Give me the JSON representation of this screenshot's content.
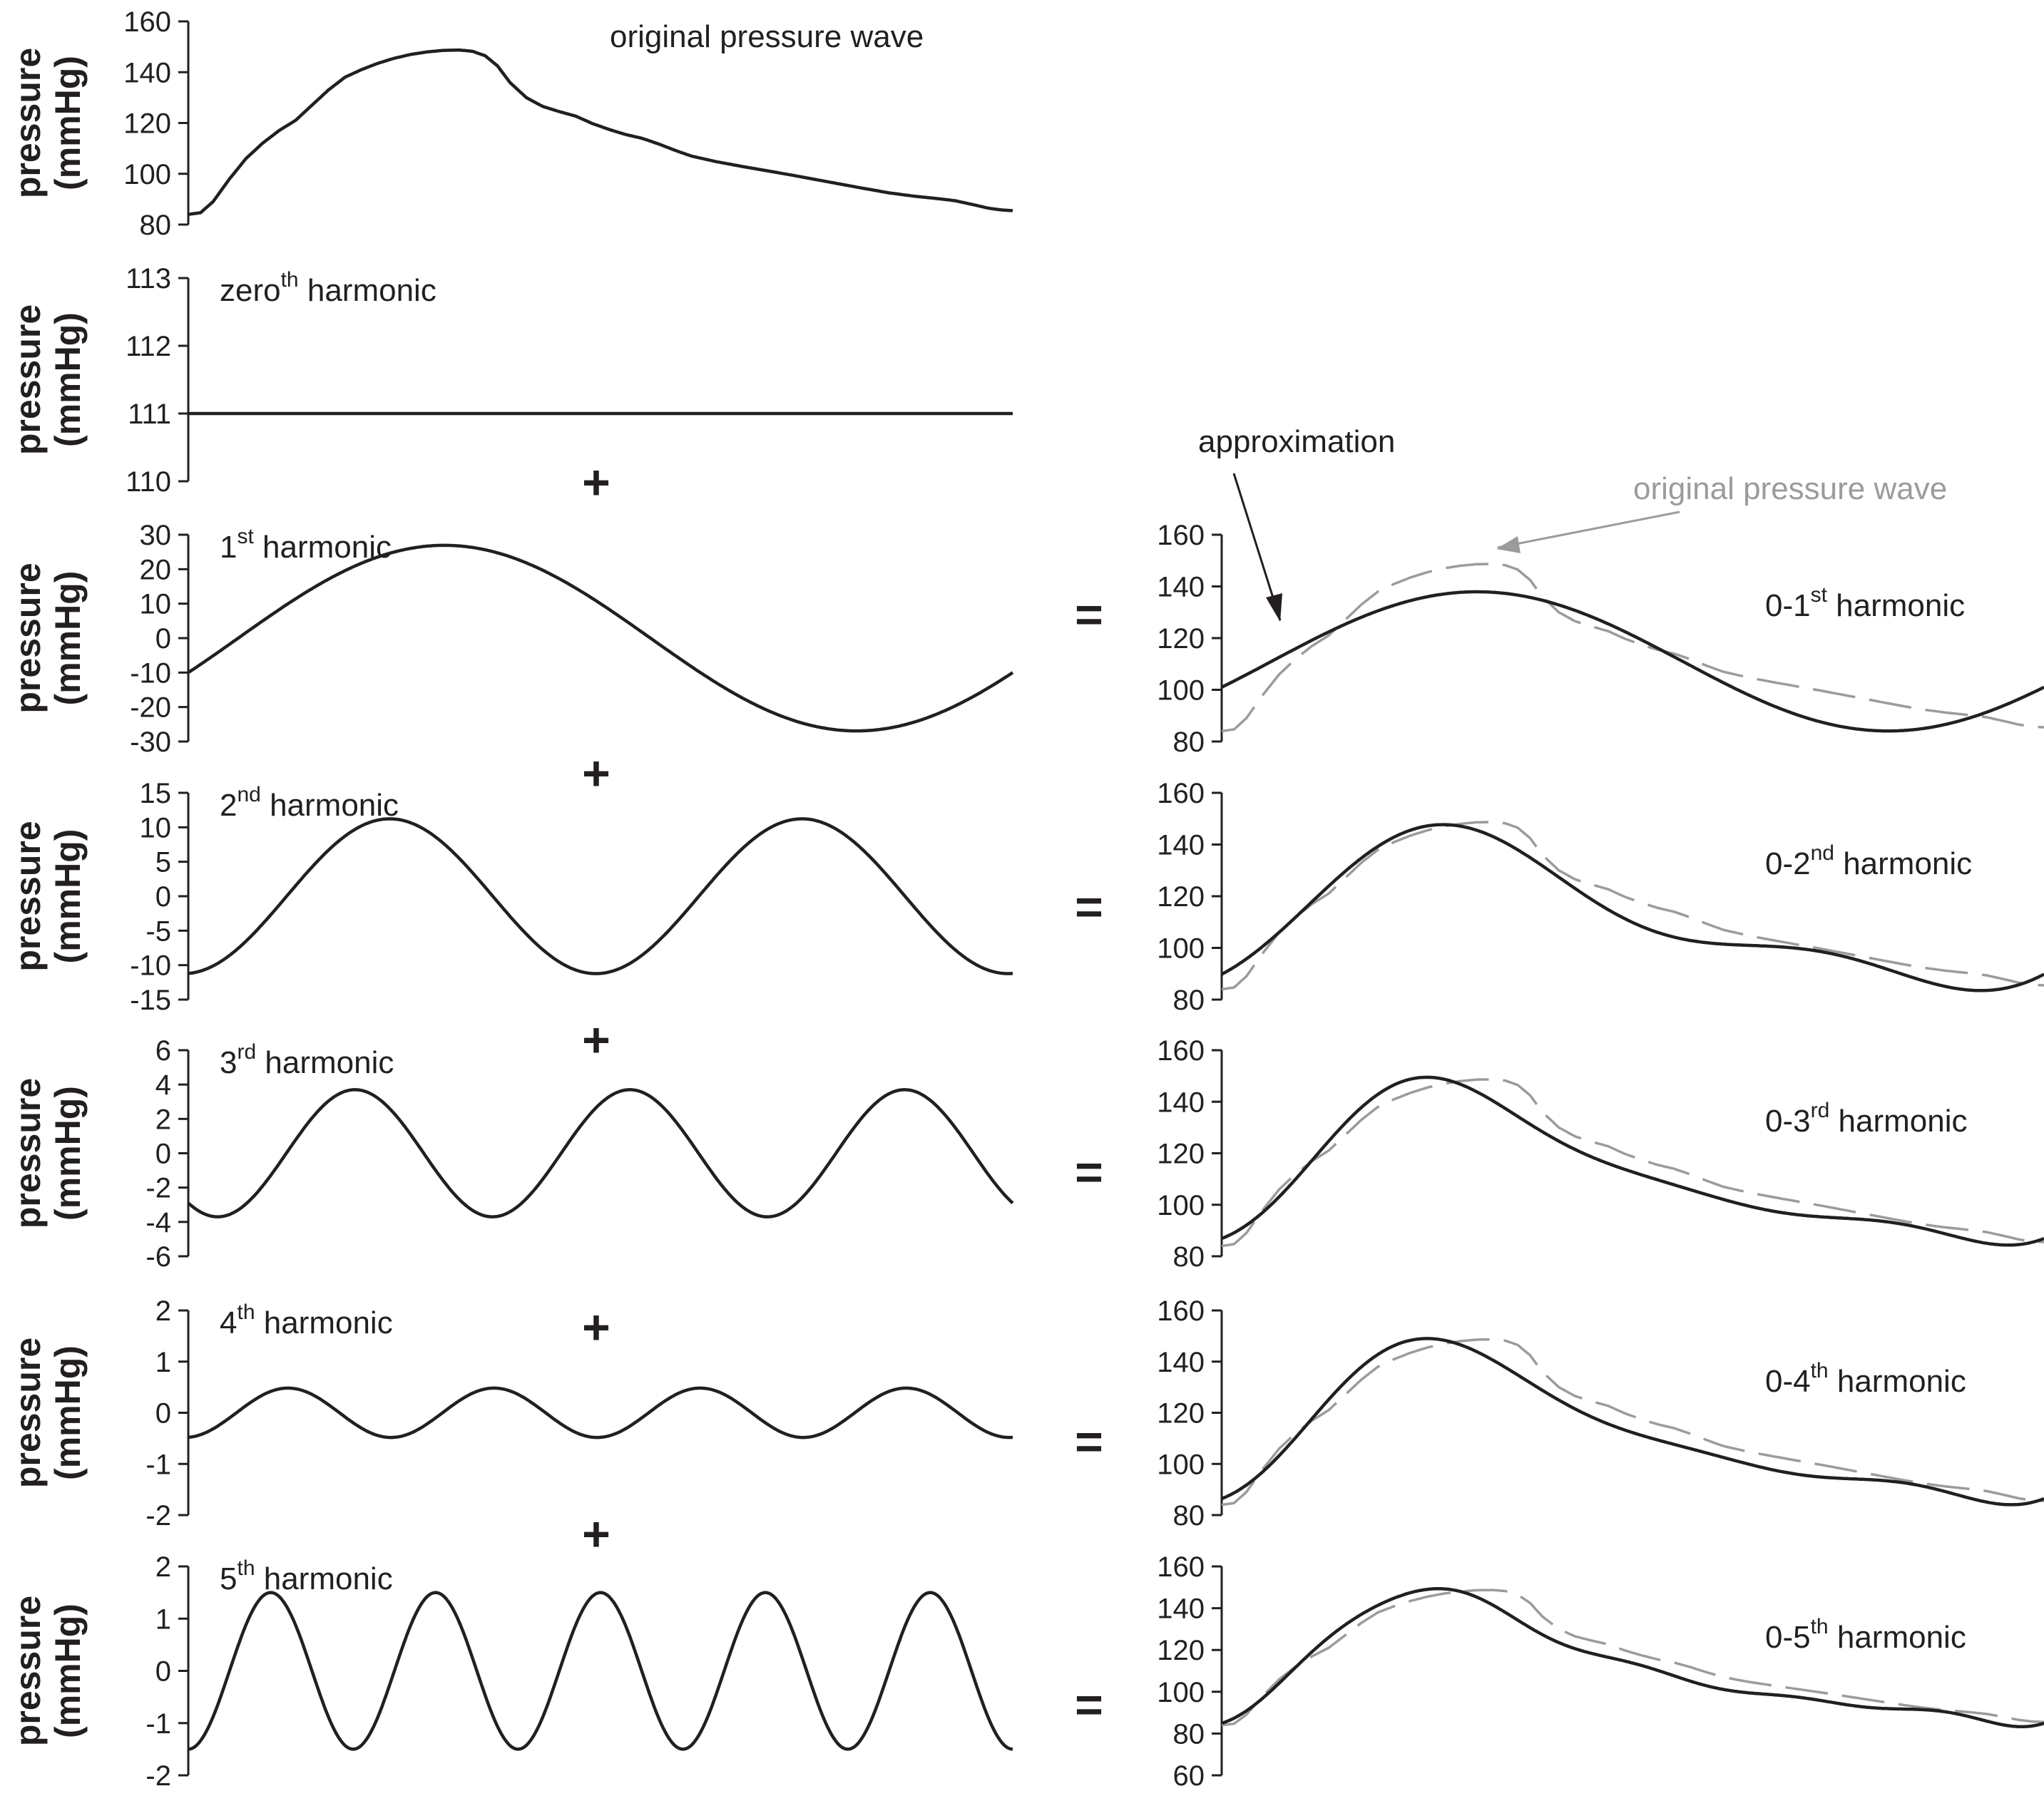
{
  "y_axis_label_line1": "pressure",
  "y_axis_label_line2": "(mmHg)",
  "colors": {
    "approximation": "#231f20",
    "original": "#9b9b9b"
  },
  "callouts": {
    "approximation": "approximation",
    "original": "original pressure wave"
  },
  "operators": {
    "plus": "+",
    "equals": "="
  },
  "original_wave": [
    [
      0,
      84
    ],
    [
      0.015,
      84.7
    ],
    [
      0.03,
      89
    ],
    [
      0.05,
      98
    ],
    [
      0.07,
      106
    ],
    [
      0.09,
      112
    ],
    [
      0.11,
      117
    ],
    [
      0.13,
      121
    ],
    [
      0.15,
      127
    ],
    [
      0.17,
      133
    ],
    [
      0.19,
      138
    ],
    [
      0.21,
      141
    ],
    [
      0.23,
      143.5
    ],
    [
      0.25,
      145.5
    ],
    [
      0.27,
      147
    ],
    [
      0.29,
      148
    ],
    [
      0.31,
      148.6
    ],
    [
      0.33,
      148.7
    ],
    [
      0.345,
      148.2
    ],
    [
      0.36,
      146.5
    ],
    [
      0.375,
      142.5
    ],
    [
      0.39,
      136
    ],
    [
      0.41,
      130
    ],
    [
      0.43,
      126.5
    ],
    [
      0.45,
      124.5
    ],
    [
      0.47,
      122.7
    ],
    [
      0.49,
      119.8
    ],
    [
      0.51,
      117.5
    ],
    [
      0.53,
      115.5
    ],
    [
      0.55,
      114
    ],
    [
      0.57,
      111.8
    ],
    [
      0.59,
      109.3
    ],
    [
      0.61,
      107
    ],
    [
      0.64,
      104.8
    ],
    [
      0.67,
      103
    ],
    [
      0.7,
      101.3
    ],
    [
      0.73,
      99.6
    ],
    [
      0.76,
      97.8
    ],
    [
      0.79,
      96
    ],
    [
      0.82,
      94.2
    ],
    [
      0.85,
      92.5
    ],
    [
      0.88,
      91.2
    ],
    [
      0.91,
      90.2
    ],
    [
      0.93,
      89.4
    ],
    [
      0.95,
      88
    ],
    [
      0.97,
      86.5
    ],
    [
      0.985,
      85.8
    ],
    [
      1.0,
      85.5
    ]
  ],
  "chart_data": [
    {
      "type": "line",
      "column": "left",
      "row": 0,
      "annotation": "original pressure wave",
      "ylim": [
        80,
        160
      ],
      "yticks": [
        80,
        100,
        120,
        140,
        160
      ],
      "series": [
        {
          "source": "original_wave"
        }
      ]
    },
    {
      "type": "line",
      "column": "left",
      "row": 1,
      "annotation_base": "zero",
      "annotation_sup": "th",
      "annotation_rest": " harmonic",
      "ylim": [
        110,
        113
      ],
      "yticks": [
        110,
        111,
        112,
        113
      ],
      "series": [
        {
          "kind": "constant",
          "value": 111
        }
      ]
    },
    {
      "type": "line",
      "column": "left",
      "row": 2,
      "annotation_base": "1",
      "annotation_sup": "st",
      "annotation_rest": " harmonic",
      "ylim": [
        -30,
        30
      ],
      "yticks": [
        -30,
        -20,
        -10,
        0,
        10,
        20,
        30
      ],
      "series": [
        {
          "kind": "harmonic",
          "n": 1,
          "a": -10,
          "b": 25
        }
      ]
    },
    {
      "type": "line",
      "column": "left",
      "row": 3,
      "annotation_base": "2",
      "annotation_sup": "nd",
      "annotation_rest": " harmonic",
      "ylim": [
        -15,
        15
      ],
      "yticks": [
        -15,
        -10,
        -5,
        0,
        5,
        10,
        15
      ],
      "series": [
        {
          "kind": "harmonic",
          "n": 2,
          "a": -11.2,
          "b": 0.8
        }
      ]
    },
    {
      "type": "line",
      "column": "left",
      "row": 4,
      "annotation_base": "3",
      "annotation_sup": "rd",
      "annotation_rest": " harmonic",
      "ylim": [
        -6,
        6
      ],
      "yticks": [
        -6,
        -4,
        -2,
        0,
        2,
        4,
        6
      ],
      "series": [
        {
          "kind": "harmonic",
          "n": 3,
          "a": -2.9,
          "b": -2.3
        }
      ]
    },
    {
      "type": "line",
      "column": "left",
      "row": 5,
      "annotation_base": "4",
      "annotation_sup": "th",
      "annotation_rest": " harmonic",
      "ylim": [
        -2,
        2
      ],
      "yticks": [
        -2,
        -1,
        0,
        1,
        2
      ],
      "series": [
        {
          "kind": "harmonic",
          "n": 4,
          "a": -0.48,
          "b": 0.05
        }
      ]
    },
    {
      "type": "line",
      "column": "left",
      "row": 6,
      "annotation_base": "5",
      "annotation_sup": "th",
      "annotation_rest": " harmonic",
      "ylim": [
        -2,
        2
      ],
      "yticks": [
        -2,
        -1,
        0,
        1,
        2
      ],
      "series": [
        {
          "kind": "harmonic",
          "n": 5,
          "a": -1.5,
          "b": 0
        }
      ]
    },
    {
      "type": "line",
      "column": "right",
      "row": 2,
      "annotation_base": "0-1",
      "annotation_sup": "st",
      "annotation_rest": " harmonic",
      "ylim": [
        80,
        160
      ],
      "yticks": [
        80,
        100,
        120,
        140,
        160
      ],
      "series": [
        {
          "kind": "sum",
          "upto": 1
        },
        {
          "source": "original_wave",
          "style": "dashed"
        }
      ]
    },
    {
      "type": "line",
      "column": "right",
      "row": 3,
      "annotation_base": "0-2",
      "annotation_sup": "nd",
      "annotation_rest": " harmonic",
      "ylim": [
        80,
        160
      ],
      "yticks": [
        80,
        100,
        120,
        140,
        160
      ],
      "series": [
        {
          "kind": "sum",
          "upto": 2
        },
        {
          "source": "original_wave",
          "style": "dashed"
        }
      ]
    },
    {
      "type": "line",
      "column": "right",
      "row": 4,
      "annotation_base": "0-3",
      "annotation_sup": "rd",
      "annotation_rest": " harmonic",
      "ylim": [
        80,
        160
      ],
      "yticks": [
        80,
        100,
        120,
        140,
        160
      ],
      "series": [
        {
          "kind": "sum",
          "upto": 3
        },
        {
          "source": "original_wave",
          "style": "dashed"
        }
      ]
    },
    {
      "type": "line",
      "column": "right",
      "row": 5,
      "annotation_base": "0-4",
      "annotation_sup": "th",
      "annotation_rest": " harmonic",
      "ylim": [
        80,
        160
      ],
      "yticks": [
        80,
        100,
        120,
        140,
        160
      ],
      "series": [
        {
          "kind": "sum",
          "upto": 4
        },
        {
          "source": "original_wave",
          "style": "dashed"
        }
      ]
    },
    {
      "type": "line",
      "column": "right",
      "row": 6,
      "annotation_base": "0-5",
      "annotation_sup": "th",
      "annotation_rest": " harmonic",
      "ylim": [
        60,
        160
      ],
      "yticks": [
        60,
        80,
        100,
        120,
        140,
        160
      ],
      "series": [
        {
          "kind": "sum",
          "upto": 5
        },
        {
          "source": "original_wave",
          "style": "dashed"
        }
      ]
    }
  ]
}
